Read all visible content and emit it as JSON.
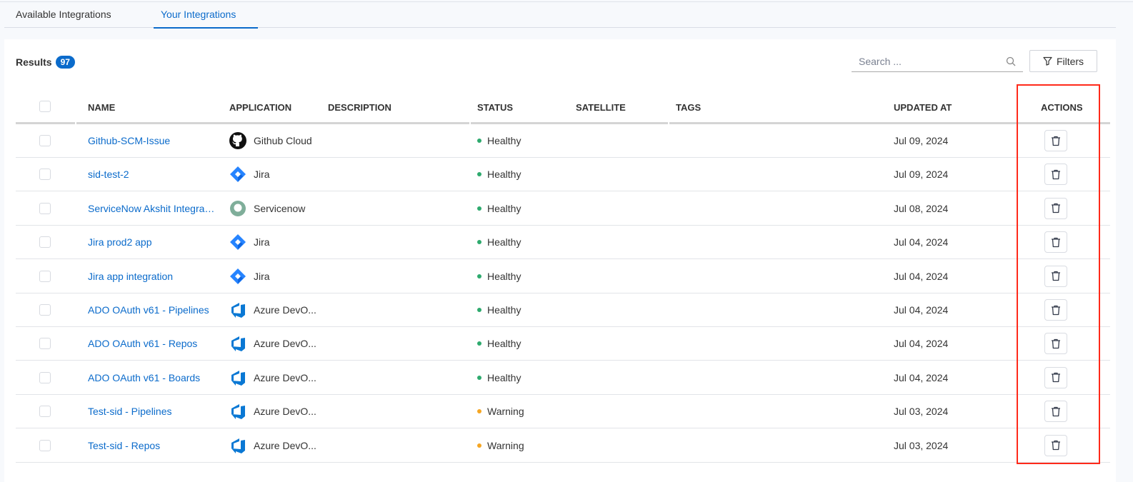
{
  "tabs": [
    {
      "label": "Available Integrations",
      "active": false
    },
    {
      "label": "Your Integrations",
      "active": true
    }
  ],
  "results": {
    "label": "Results",
    "count": "97"
  },
  "search": {
    "placeholder": "Search ...",
    "value": ""
  },
  "filters_label": "Filters",
  "columns": [
    "NAME",
    "APPLICATION",
    "DESCRIPTION",
    "STATUS",
    "SATELLITE",
    "TAGS",
    "UPDATED AT",
    "ACTIONS"
  ],
  "colors": {
    "accent": "#0b6bcb",
    "healthy": "#2eaa6e",
    "warning": "#f5a623",
    "highlight": "#ff2a1a"
  },
  "rows": [
    {
      "name": "Github-SCM-Issue",
      "app": "Github Cloud",
      "icon": "github",
      "status": "Healthy",
      "updated": "Jul 09, 2024"
    },
    {
      "name": "sid-test-2",
      "app": "Jira",
      "icon": "jira",
      "status": "Healthy",
      "updated": "Jul 09, 2024"
    },
    {
      "name": "ServiceNow Akshit Integration",
      "app": "Servicenow",
      "icon": "servicenow",
      "status": "Healthy",
      "updated": "Jul 08, 2024"
    },
    {
      "name": "Jira prod2 app",
      "app": "Jira",
      "icon": "jira",
      "status": "Healthy",
      "updated": "Jul 04, 2024"
    },
    {
      "name": "Jira app integration",
      "app": "Jira",
      "icon": "jira",
      "status": "Healthy",
      "updated": "Jul 04, 2024"
    },
    {
      "name": "ADO OAuth v61 - Pipelines",
      "app": "Azure DevO...",
      "icon": "azure",
      "status": "Healthy",
      "updated": "Jul 04, 2024"
    },
    {
      "name": "ADO OAuth v61 - Repos",
      "app": "Azure DevO...",
      "icon": "azure",
      "status": "Healthy",
      "updated": "Jul 04, 2024"
    },
    {
      "name": "ADO OAuth v61 - Boards",
      "app": "Azure DevO...",
      "icon": "azure",
      "status": "Healthy",
      "updated": "Jul 04, 2024"
    },
    {
      "name": "Test-sid - Pipelines",
      "app": "Azure DevO...",
      "icon": "azure",
      "status": "Warning",
      "updated": "Jul 03, 2024"
    },
    {
      "name": "Test-sid - Repos",
      "app": "Azure DevO...",
      "icon": "azure",
      "status": "Warning",
      "updated": "Jul 03, 2024"
    }
  ]
}
